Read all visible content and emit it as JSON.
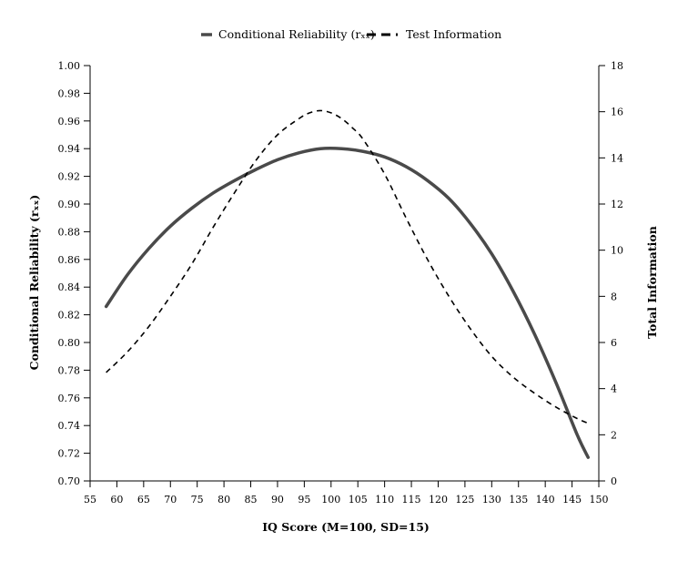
{
  "chart_data": {
    "type": "line",
    "title": "",
    "xlabel": "IQ Score (M=100, SD=15)",
    "ylabel_left": "Conditional Reliability (rₓₓ)",
    "ylabel_right": "Total Information",
    "xlim": [
      55,
      150
    ],
    "ylim_left": [
      0.7,
      1.0
    ],
    "ylim_right": [
      0,
      18
    ],
    "x_ticks": [
      55,
      60,
      65,
      70,
      75,
      80,
      85,
      90,
      95,
      100,
      105,
      110,
      115,
      120,
      125,
      130,
      135,
      140,
      145,
      150
    ],
    "y_left_ticks": [
      "0.70",
      "0.72",
      "0.74",
      "0.76",
      "0.78",
      "0.80",
      "0.82",
      "0.84",
      "0.86",
      "0.88",
      "0.90",
      "0.92",
      "0.94",
      "0.96",
      "0.98",
      "1.00"
    ],
    "y_right_ticks": [
      "0",
      "2",
      "4",
      "6",
      "8",
      "10",
      "12",
      "14",
      "16",
      "18"
    ],
    "grid": false,
    "legend_position": "top-center",
    "series": [
      {
        "name": "Conditional Reliability (rₓₓ)",
        "axis": "left",
        "style": "solid",
        "color": "#4a4a4a",
        "x": [
          58,
          62,
          66,
          70,
          74,
          78,
          82,
          86,
          90,
          94,
          98,
          102,
          106,
          110,
          114,
          118,
          122,
          126,
          130,
          134,
          138,
          142,
          146,
          148
        ],
        "values": [
          0.826,
          0.849,
          0.868,
          0.884,
          0.897,
          0.908,
          0.917,
          0.925,
          0.932,
          0.937,
          0.94,
          0.94,
          0.938,
          0.934,
          0.927,
          0.917,
          0.904,
          0.886,
          0.864,
          0.837,
          0.806,
          0.771,
          0.733,
          0.717
        ]
      },
      {
        "name": "Test Information",
        "axis": "right",
        "style": "dashed",
        "color": "#000000",
        "x": [
          58,
          62,
          66,
          70,
          74,
          78,
          82,
          86,
          90,
          94,
          96,
          98,
          100,
          102,
          104,
          106,
          110,
          114,
          118,
          122,
          126,
          130,
          134,
          138,
          142,
          146,
          148
        ],
        "values": [
          4.7,
          5.6,
          6.7,
          8.0,
          9.4,
          11.0,
          12.5,
          13.9,
          15.0,
          15.7,
          15.95,
          16.05,
          15.95,
          15.7,
          15.3,
          14.8,
          13.3,
          11.4,
          9.6,
          8.0,
          6.6,
          5.4,
          4.5,
          3.8,
          3.2,
          2.7,
          2.5
        ]
      }
    ]
  }
}
